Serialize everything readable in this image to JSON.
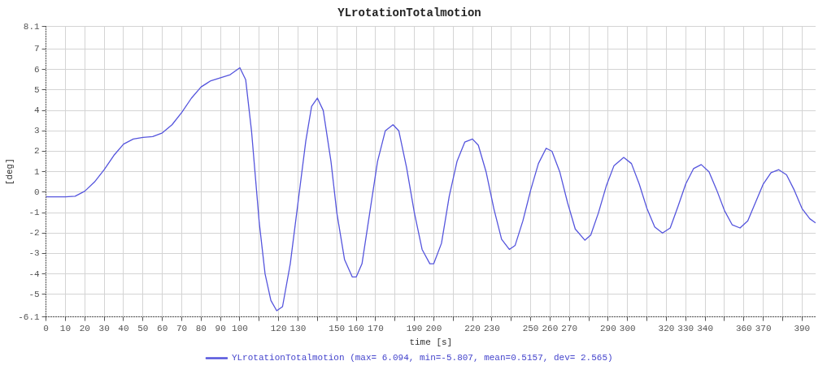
{
  "chart_data": {
    "type": "line",
    "title": "YLrotationTotalmotion",
    "xlabel": "time [s]",
    "ylabel": "[deg]",
    "xlim": [
      0,
      397
    ],
    "ylim": [
      -6.1,
      8.1
    ],
    "xticks": [
      0,
      10,
      20,
      30,
      40,
      50,
      60,
      70,
      80,
      90,
      100,
      {
        "value": 110,
        "label": null
      },
      120,
      130,
      {
        "value": 140,
        "label": null
      },
      150,
      160,
      170,
      {
        "value": 180,
        "label": null
      },
      190,
      200,
      {
        "value": 210,
        "label": null
      },
      220,
      230,
      {
        "value": 240,
        "label": null
      },
      250,
      260,
      270,
      {
        "value": 280,
        "label": null
      },
      290,
      300,
      {
        "value": 310,
        "label": null
      },
      320,
      330,
      340,
      {
        "value": 350,
        "label": null
      },
      360,
      370,
      {
        "value": 380,
        "label": null
      },
      390
    ],
    "yticks": [
      -6.1,
      -5,
      -4,
      -3,
      -2,
      -1,
      0,
      1,
      2,
      3,
      4,
      5,
      6,
      7,
      8.1
    ],
    "grid": true,
    "legend": "bottom",
    "marker": "none",
    "line_style": "solid",
    "series": [
      {
        "name": "YLrotationTotalmotion (max= 6.094, min=-5.807, mean=0.5157, dev= 2.565)",
        "color": "#5555dd",
        "x": [
          0,
          10,
          15,
          20,
          25,
          30,
          35,
          40,
          45,
          50,
          55,
          60,
          65,
          70,
          75,
          80,
          85,
          90,
          95,
          100,
          103,
          106,
          110,
          113,
          116,
          119,
          122,
          126,
          130,
          134,
          137,
          140,
          143,
          147,
          150,
          154,
          158,
          160,
          163,
          167,
          171,
          175,
          179,
          182,
          186,
          190,
          194,
          198,
          200,
          204,
          208,
          212,
          216,
          220,
          223,
          227,
          231,
          235,
          239,
          242,
          246,
          250,
          254,
          258,
          261,
          265,
          269,
          273,
          278,
          281,
          285,
          289,
          293,
          298,
          302,
          306,
          310,
          314,
          318,
          322,
          326,
          330,
          334,
          338,
          342,
          346,
          350,
          354,
          358,
          362,
          366,
          370,
          374,
          378,
          382,
          386,
          390,
          394,
          397
        ],
        "values": [
          -0.23,
          -0.23,
          -0.2,
          0.05,
          0.5,
          1.1,
          1.8,
          2.35,
          2.6,
          2.68,
          2.72,
          2.9,
          3.3,
          3.9,
          4.6,
          5.15,
          5.45,
          5.6,
          5.75,
          6.09,
          5.5,
          3,
          -1.5,
          -4,
          -5.3,
          -5.8,
          -5.6,
          -3.5,
          -0.5,
          2.5,
          4.2,
          4.6,
          4,
          1.5,
          -1,
          -3.3,
          -4.15,
          -4.15,
          -3.5,
          -1,
          1.5,
          3,
          3.3,
          3,
          1.2,
          -1,
          -2.8,
          -3.5,
          -3.5,
          -2.5,
          -0.2,
          1.5,
          2.45,
          2.6,
          2.3,
          1,
          -0.8,
          -2.3,
          -2.8,
          -2.6,
          -1.4,
          0.1,
          1.4,
          2.15,
          2,
          1,
          -0.5,
          -1.8,
          -2.35,
          -2.1,
          -1,
          0.3,
          1.3,
          1.7,
          1.4,
          0.4,
          -0.8,
          -1.7,
          -2,
          -1.75,
          -0.7,
          0.4,
          1.15,
          1.35,
          1,
          0.1,
          -0.9,
          -1.6,
          -1.75,
          -1.4,
          -0.5,
          0.4,
          0.95,
          1.1,
          0.85,
          0.1,
          -0.8,
          -1.3,
          -1.5
        ]
      }
    ]
  }
}
